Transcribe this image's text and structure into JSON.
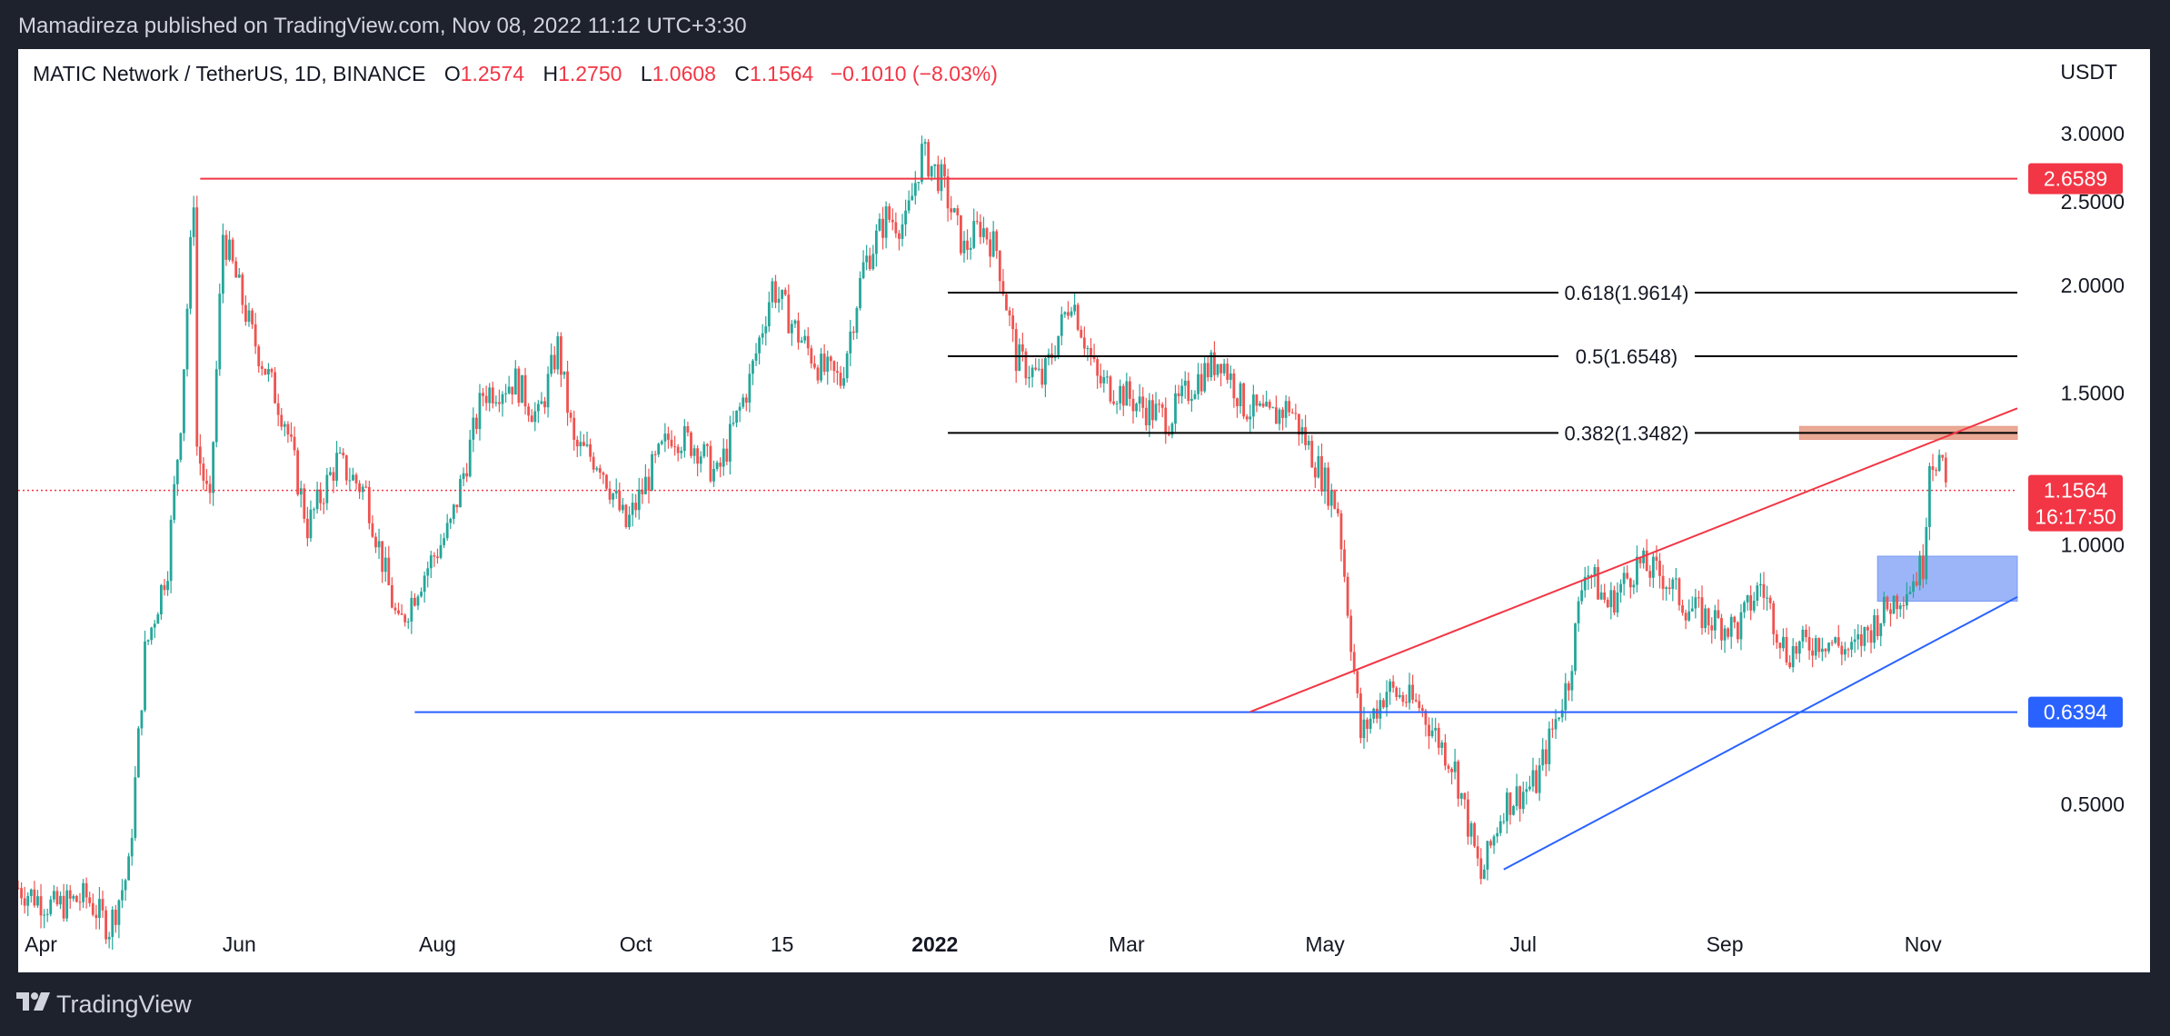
{
  "header": {
    "publisher": "Mamadireza published on TradingView.com, Nov 08, 2022 11:12 UTC+3:30"
  },
  "legend": {
    "symbol": "MATIC Network / TetherUS, 1D, BINANCE",
    "open_label": "O",
    "open": "1.2574",
    "high_label": "H",
    "high": "1.2750",
    "low_label": "L",
    "low": "1.0608",
    "close_label": "C",
    "close": "1.1564",
    "change": "−0.1010 (−8.03%)"
  },
  "currency": "USDT",
  "footer": {
    "brand": "TradingView"
  },
  "colors": {
    "up": "#26a69a",
    "down": "#ef5350",
    "resistance": "#f23645",
    "support": "#2962ff",
    "fib": "#000000",
    "grid": "#ffffff",
    "supply_zone": "#e8a08a",
    "demand_zone": "#7b9cf5"
  },
  "chart_data": {
    "type": "candlestick",
    "y_scale": "log",
    "ylim": [
      0.37,
      3.25
    ],
    "x_range": [
      "2021-03-25",
      "2022-11-30"
    ],
    "y_ticks": [
      "3.0000",
      "2.5000",
      "2.0000",
      "1.5000",
      "1.0000",
      "0.5000"
    ],
    "y_tick_values": [
      3.0,
      2.5,
      2.0,
      1.5,
      1.0,
      0.5
    ],
    "x_ticks": [
      {
        "label": "Apr",
        "date": "2021-04-01",
        "bold": false
      },
      {
        "label": "Jun",
        "date": "2021-06-01",
        "bold": false
      },
      {
        "label": "Aug",
        "date": "2021-08-01",
        "bold": false
      },
      {
        "label": "Oct",
        "date": "2021-10-01",
        "bold": false
      },
      {
        "label": "15",
        "date": "2021-11-15",
        "bold": false
      },
      {
        "label": "2022",
        "date": "2022-01-01",
        "bold": true
      },
      {
        "label": "Mar",
        "date": "2022-03-01",
        "bold": false
      },
      {
        "label": "May",
        "date": "2022-05-01",
        "bold": false
      },
      {
        "label": "Jul",
        "date": "2022-07-01",
        "bold": false
      },
      {
        "label": "Sep",
        "date": "2022-09-01",
        "bold": false
      },
      {
        "label": "Nov",
        "date": "2022-11-01",
        "bold": false
      }
    ],
    "price_path": [
      [
        "2021-03-25",
        0.4
      ],
      [
        "2021-04-05",
        0.38
      ],
      [
        "2021-04-15",
        0.39
      ],
      [
        "2021-04-22",
        0.36
      ],
      [
        "2021-04-28",
        0.42
      ],
      [
        "2021-05-03",
        0.75
      ],
      [
        "2021-05-10",
        0.95
      ],
      [
        "2021-05-14",
        1.4
      ],
      [
        "2021-05-18",
        2.55
      ],
      [
        "2021-05-19",
        1.3
      ],
      [
        "2021-05-23",
        1.1
      ],
      [
        "2021-05-27",
        2.3
      ],
      [
        "2021-06-05",
        1.75
      ],
      [
        "2021-06-15",
        1.4
      ],
      [
        "2021-06-22",
        1.05
      ],
      [
        "2021-07-01",
        1.25
      ],
      [
        "2021-07-10",
        1.15
      ],
      [
        "2021-07-20",
        0.8
      ],
      [
        "2021-07-26",
        0.9
      ],
      [
        "2021-08-05",
        1.05
      ],
      [
        "2021-08-15",
        1.5
      ],
      [
        "2021-08-25",
        1.55
      ],
      [
        "2021-09-01",
        1.4
      ],
      [
        "2021-09-07",
        1.7
      ],
      [
        "2021-09-12",
        1.3
      ],
      [
        "2021-09-20",
        1.25
      ],
      [
        "2021-09-28",
        1.05
      ],
      [
        "2021-10-05",
        1.2
      ],
      [
        "2021-10-12",
        1.35
      ],
      [
        "2021-10-20",
        1.3
      ],
      [
        "2021-10-26",
        1.2
      ],
      [
        "2021-11-05",
        1.55
      ],
      [
        "2021-11-12",
        2.0
      ],
      [
        "2021-11-20",
        1.75
      ],
      [
        "2021-11-27",
        1.6
      ],
      [
        "2021-12-03",
        1.55
      ],
      [
        "2021-12-10",
        2.1
      ],
      [
        "2021-12-17",
        2.4
      ],
      [
        "2021-12-23",
        2.35
      ],
      [
        "2021-12-28",
        2.85
      ],
      [
        "2022-01-03",
        2.65
      ],
      [
        "2022-01-10",
        2.2
      ],
      [
        "2022-01-15",
        2.35
      ],
      [
        "2022-01-20",
        2.2
      ],
      [
        "2022-01-26",
        1.65
      ],
      [
        "2022-02-03",
        1.55
      ],
      [
        "2022-02-08",
        1.75
      ],
      [
        "2022-02-12",
        1.95
      ],
      [
        "2022-02-20",
        1.55
      ],
      [
        "2022-02-28",
        1.5
      ],
      [
        "2022-03-05",
        1.45
      ],
      [
        "2022-03-14",
        1.4
      ],
      [
        "2022-03-22",
        1.55
      ],
      [
        "2022-03-30",
        1.65
      ],
      [
        "2022-04-06",
        1.45
      ],
      [
        "2022-04-14",
        1.4
      ],
      [
        "2022-04-20",
        1.45
      ],
      [
        "2022-04-28",
        1.25
      ],
      [
        "2022-05-05",
        1.1
      ],
      [
        "2022-05-12",
        0.6
      ],
      [
        "2022-05-20",
        0.68
      ],
      [
        "2022-05-30",
        0.65
      ],
      [
        "2022-06-10",
        0.55
      ],
      [
        "2022-06-18",
        0.41
      ],
      [
        "2022-06-25",
        0.5
      ],
      [
        "2022-07-05",
        0.53
      ],
      [
        "2022-07-15",
        0.7
      ],
      [
        "2022-07-20",
        0.95
      ],
      [
        "2022-07-27",
        0.85
      ],
      [
        "2022-08-05",
        0.95
      ],
      [
        "2022-08-13",
        0.92
      ],
      [
        "2022-08-20",
        0.85
      ],
      [
        "2022-08-27",
        0.82
      ],
      [
        "2022-09-05",
        0.8
      ],
      [
        "2022-09-12",
        0.9
      ],
      [
        "2022-09-20",
        0.75
      ],
      [
        "2022-10-01",
        0.78
      ],
      [
        "2022-10-10",
        0.75
      ],
      [
        "2022-10-18",
        0.82
      ],
      [
        "2022-10-25",
        0.88
      ],
      [
        "2022-10-28",
        0.9
      ],
      [
        "2022-11-01",
        0.95
      ],
      [
        "2022-11-03",
        1.26
      ],
      [
        "2022-11-06",
        1.26
      ],
      [
        "2022-11-08",
        1.16
      ]
    ],
    "horizontal_levels": [
      {
        "value": 2.6589,
        "label": "2.6589",
        "color": "resistance",
        "from": "2021-05-20"
      },
      {
        "value": 0.6394,
        "label": "0.6394",
        "color": "support",
        "from": "2021-07-25"
      }
    ],
    "current_price": {
      "value": 1.1564,
      "label": "1.1564",
      "countdown": "16:17:50"
    },
    "fib_levels": [
      {
        "value": 1.9614,
        "label": "0.618(1.9614)"
      },
      {
        "value": 1.6548,
        "label": "0.5(1.6548)"
      },
      {
        "value": 1.3482,
        "label": "0.382(1.3482)"
      }
    ],
    "fib_from": "2022-01-05",
    "trendlines": [
      {
        "from": [
          "2022-04-08",
          0.64
        ],
        "to": [
          "2022-11-30",
          1.44
        ],
        "color": "resistance"
      },
      {
        "from": [
          "2022-06-25",
          0.42
        ],
        "to": [
          "2022-11-30",
          0.87
        ],
        "color": "support"
      }
    ],
    "zones": [
      {
        "from": "2022-09-24",
        "to": "2022-11-30",
        "low": 1.325,
        "high": 1.372,
        "color": "supply_zone"
      },
      {
        "from": "2022-10-18",
        "to": "2022-11-30",
        "low": 0.86,
        "high": 0.97,
        "color": "demand_zone"
      }
    ]
  }
}
